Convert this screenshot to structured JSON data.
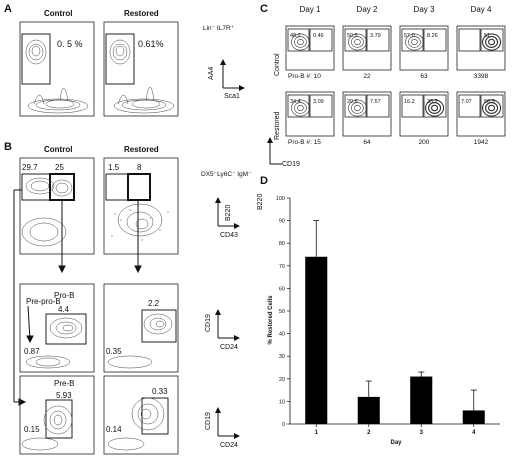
{
  "panel_a": {
    "letter": "A",
    "control_title": "Control",
    "restored_title": "Restored",
    "gate_label": "Lin⁻ IL7R⁺",
    "control_pct": "0. 5 %",
    "restored_pct": "0.61%",
    "y_axis": "AA4",
    "x_axis": "Sca1",
    "ticks_y": [
      "10⁵",
      "10⁴",
      "10³",
      "10²",
      "0"
    ],
    "ticks_x": [
      "10²",
      "10³",
      "10⁴",
      "10⁵"
    ]
  },
  "panel_b": {
    "letter": "B",
    "control_title": "Control",
    "restored_title": "Restored",
    "gate_label": "DX5⁻Ly6C⁻ IgM⁻",
    "row1": {
      "control_values": [
        "29.7",
        "25"
      ],
      "restored_values": [
        "1.5",
        "8"
      ],
      "y_axis": "B220",
      "x_axis": "CD43"
    },
    "row2": {
      "prepro_label": "Pre-pro-B",
      "prob_label": "Pro-B",
      "control_values": [
        "4.4",
        "0.87"
      ],
      "restored_values": [
        "2.2",
        "0.35"
      ],
      "y_axis": "CD19",
      "x_axis": "CD24"
    },
    "row3": {
      "preb_label": "Pre-B",
      "control_values": [
        "5.93",
        "0.15"
      ],
      "restored_values": [
        "0.33",
        "0.14"
      ],
      "y_axis": "CD19",
      "x_axis": "CD24"
    }
  },
  "panel_c": {
    "letter": "C",
    "days": [
      "Day 1",
      "Day 2",
      "Day 3",
      "Day 4"
    ],
    "row_control": "Control",
    "row_restored": "Restored",
    "prob_prefix": "Pro-B #:",
    "control_gates": [
      [
        "48.2",
        "0.46"
      ],
      [
        "50.5",
        "3.79"
      ],
      [
        "57.0",
        "8.26"
      ],
      [
        "",
        "51"
      ]
    ],
    "control_counts": [
      "10",
      "22",
      "63",
      "3398"
    ],
    "restored_gates": [
      [
        "34.4",
        "3.09"
      ],
      [
        "20.6",
        "7.57"
      ],
      [
        "16.2",
        "35.7"
      ],
      [
        "7.07",
        "56.3"
      ]
    ],
    "restored_counts": [
      "15",
      "64",
      "200",
      "1942"
    ],
    "y_axis": "B220",
    "x_axis": "CD19"
  },
  "panel_d": {
    "letter": "D"
  },
  "chart_data": {
    "type": "bar",
    "categories": [
      "1",
      "2",
      "3",
      "4"
    ],
    "values": [
      74,
      12,
      21,
      6
    ],
    "errors": [
      16,
      7,
      2,
      9
    ],
    "title": "",
    "xlabel": "Day",
    "ylabel": "% Restored Cells",
    "ylim": [
      0,
      100
    ],
    "yticks": [
      "0",
      "10",
      "20",
      "30",
      "40",
      "50",
      "60",
      "70",
      "80",
      "90",
      "100"
    ],
    "grid": false,
    "bar_color": "#000000"
  }
}
